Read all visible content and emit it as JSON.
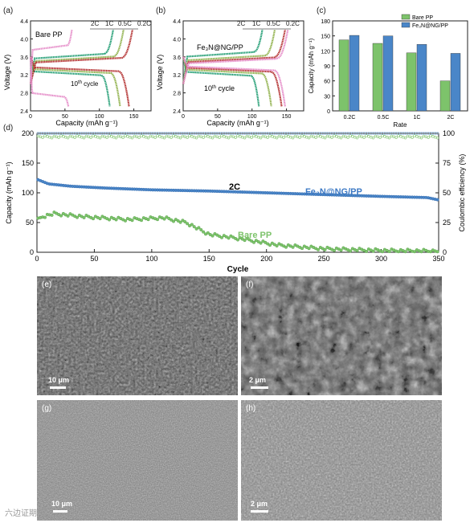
{
  "panel_a": {
    "label": "(a)",
    "sample": "Bare PP",
    "cycle_note": "10",
    "cycle_sup": "th",
    "cycle_word": " cycle",
    "rates": [
      "2C",
      "1C",
      "0.5C",
      "0.2C"
    ],
    "xlabel": "Capacity (mAh g⁻¹)",
    "ylabel": "Voltage (V)"
  },
  "panel_b": {
    "label": "(b)",
    "sample": "Fe₃N@NG/PP",
    "cycle_note": "10",
    "cycle_sup": "th",
    "cycle_word": " cycle",
    "rates": [
      "2C",
      "1C",
      "0.5C",
      "0.2C"
    ],
    "xlabel": "Capacity (mAh g⁻¹)",
    "ylabel": "Voltage (V)"
  },
  "panel_c": {
    "label": "(c)"
  },
  "panel_d": {
    "label": "(d)",
    "rate_note": "2C",
    "bare_label": "Bare PP",
    "fe_label": "Fe₃N@NG/PP"
  },
  "sem": [
    {
      "label": "(e)",
      "scale": "10 μm"
    },
    {
      "label": "(f)",
      "scale": "2 μm"
    },
    {
      "label": "(g)",
      "scale": "10 μm"
    },
    {
      "label": "(h)",
      "scale": "2 μm"
    }
  ],
  "watermark": "六边证期",
  "colors": {
    "rate_2C": "#1f9c72",
    "rate_1C": "#8fb04a",
    "rate_05C": "#b22e2e",
    "rate_02C": "#e58cc8",
    "bare": "#7dc36b",
    "fe": "#4a86c8"
  },
  "chart_data": [
    {
      "type": "line",
      "title": "",
      "xlabel": "Capacity (mAh g⁻¹)",
      "ylabel": "Voltage (V)",
      "xlim": [
        0,
        175
      ],
      "ylim": [
        2.4,
        4.4
      ],
      "xticks": [
        0,
        50,
        100,
        150
      ],
      "yticks": [
        2.4,
        2.8,
        3.2,
        3.6,
        4.0,
        4.4
      ],
      "series": [
        {
          "name": "2C",
          "charge_cap": 120,
          "discharge_cap": 115,
          "charge_plateau": 3.56,
          "discharge_plateau": 3.28
        },
        {
          "name": "1C",
          "charge_cap": 135,
          "discharge_cap": 130,
          "charge_plateau": 3.5,
          "discharge_plateau": 3.33
        },
        {
          "name": "0.5C",
          "charge_cap": 148,
          "discharge_cap": 143,
          "charge_plateau": 3.47,
          "discharge_plateau": 3.37
        },
        {
          "name": "0.2C",
          "charge_cap": 60,
          "discharge_cap": 55,
          "charge_plateau": 3.75,
          "discharge_plateau": 2.8
        }
      ]
    },
    {
      "type": "line",
      "title": "",
      "xlabel": "Capacity (mAh g⁻¹)",
      "ylabel": "Voltage (V)",
      "xlim": [
        0,
        175
      ],
      "ylim": [
        2.4,
        4.4
      ],
      "xticks": [
        0,
        50,
        100,
        150
      ],
      "yticks": [
        2.4,
        2.8,
        3.2,
        3.6,
        4.0,
        4.4
      ],
      "series": [
        {
          "name": "2C",
          "charge_cap": 115,
          "discharge_cap": 110,
          "charge_plateau": 3.6,
          "discharge_plateau": 3.27
        },
        {
          "name": "1C",
          "charge_cap": 133,
          "discharge_cap": 128,
          "charge_plateau": 3.52,
          "discharge_plateau": 3.32
        },
        {
          "name": "0.5C",
          "charge_cap": 148,
          "discharge_cap": 143,
          "charge_plateau": 3.48,
          "discharge_plateau": 3.36
        },
        {
          "name": "0.2C",
          "charge_cap": 152,
          "discharge_cap": 148,
          "charge_plateau": 3.45,
          "discharge_plateau": 3.39
        }
      ]
    },
    {
      "type": "bar",
      "title": "",
      "xlabel": "Rate",
      "ylabel": "Capacity (mAh g⁻¹)",
      "categories": [
        "0.2C",
        "0.5C",
        "1C",
        "2C"
      ],
      "ylim": [
        0,
        180
      ],
      "yticks": [
        0,
        30,
        60,
        90,
        120,
        150,
        180
      ],
      "series": [
        {
          "name": "Bare PP",
          "values": [
            142,
            135,
            116,
            60
          ]
        },
        {
          "name": "Fe₃N@NG/PP",
          "values": [
            151,
            150,
            133,
            115
          ]
        }
      ]
    },
    {
      "type": "scatter",
      "title": "",
      "xlabel": "Cycle",
      "ylabel": "Capacity (mAh g⁻¹)",
      "y2label": "Coulombic effciency (%)",
      "xlim": [
        0,
        350
      ],
      "ylim": [
        0,
        200
      ],
      "y2lim": [
        0,
        100
      ],
      "xticks": [
        0,
        50,
        100,
        150,
        200,
        250,
        300,
        350
      ],
      "yticks": [
        0,
        50,
        100,
        150,
        200
      ],
      "y2ticks": [
        0,
        25,
        50,
        75,
        100
      ],
      "series": [
        {
          "name": "Fe₃N@NG/PP",
          "axis": "left",
          "x": [
            1,
            10,
            30,
            60,
            100,
            150,
            200,
            250,
            300,
            340,
            350
          ],
          "values": [
            122,
            115,
            111,
            108,
            105,
            103,
            100,
            97,
            94,
            92,
            88
          ]
        },
        {
          "name": "Bare PP",
          "axis": "left",
          "x": [
            1,
            5,
            15,
            40,
            80,
            110,
            130,
            150,
            180,
            210,
            250,
            300,
            350
          ],
          "values": [
            55,
            60,
            65,
            60,
            55,
            58,
            50,
            30,
            22,
            12,
            6,
            3,
            2
          ]
        },
        {
          "name": "CE Fe₃N@NG/PP",
          "axis": "right",
          "x": [
            1,
            350
          ],
          "values": [
            100,
            100
          ]
        },
        {
          "name": "CE Bare PP",
          "axis": "right",
          "x": [
            1,
            350
          ],
          "values": [
            98,
            98
          ]
        }
      ]
    }
  ]
}
